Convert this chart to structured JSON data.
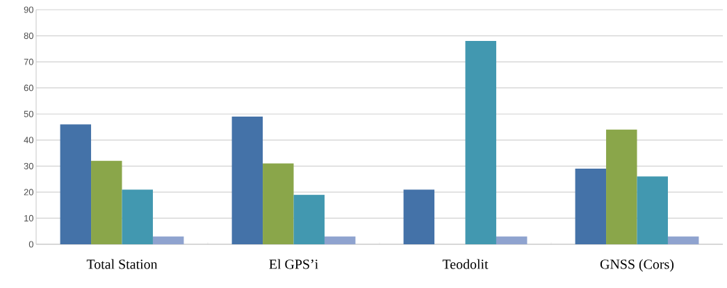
{
  "chart_data": {
    "type": "bar",
    "categories": [
      "Total Station",
      "El GPS’i",
      "Teodolit",
      "GNSS (Cors)"
    ],
    "series": [
      {
        "color": "#4472a8",
        "values": [
          46,
          49,
          21,
          29
        ]
      },
      {
        "color": "#8aa64a",
        "values": [
          32,
          31,
          null,
          44
        ]
      },
      {
        "color": "#4298b0",
        "values": [
          21,
          19,
          78,
          26
        ]
      },
      {
        "color": "#8fa3cf",
        "values": [
          3,
          3,
          3,
          3
        ]
      }
    ],
    "ylim": [
      0,
      90
    ],
    "yticks": [
      0,
      10,
      20,
      30,
      40,
      50,
      60,
      70,
      80,
      90
    ],
    "grid": "y"
  }
}
